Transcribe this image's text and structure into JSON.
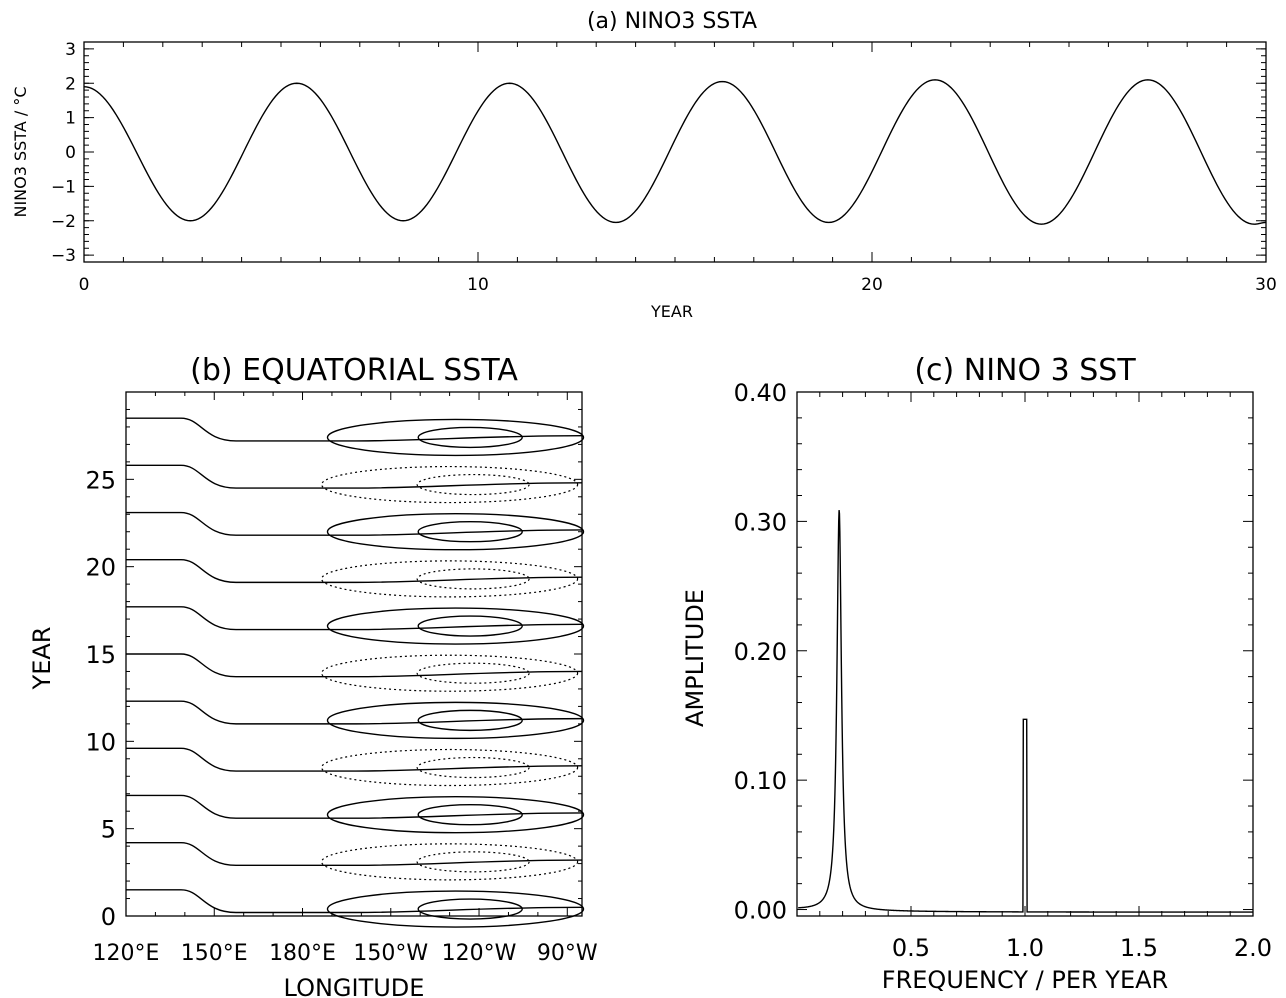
{
  "chart_data": [
    {
      "id": "a",
      "type": "line",
      "title": "(a) NINO3 SSTA",
      "xlabel": "YEAR",
      "ylabel": "NINO3 SSTA / °C",
      "xlim": [
        0,
        30
      ],
      "ylim": [
        -3.2,
        3.2
      ],
      "xticks": [
        0,
        10,
        20,
        30
      ],
      "yticks": [
        3,
        2,
        1,
        0,
        -1,
        -2,
        -3
      ],
      "x": [
        0,
        2.7,
        5.4,
        8.1,
        10.8,
        13.5,
        16.2,
        18.9,
        21.6,
        24.3,
        27.0,
        29.7,
        30
      ],
      "y": [
        1.9,
        -2.0,
        2.0,
        -2.0,
        2.0,
        -2.05,
        2.05,
        -2.05,
        2.1,
        -2.1,
        2.1,
        -2.1,
        -2.05
      ]
    },
    {
      "id": "b",
      "type": "contour",
      "title": "(b) EQUATORIAL SSTA",
      "xlabel": "LONGITUDE",
      "ylabel": "YEAR",
      "ylim": [
        0,
        30
      ],
      "yticks": [
        0,
        5,
        10,
        15,
        20,
        25
      ],
      "xtick_labels": [
        "120°E",
        "150°E",
        "180°E",
        "150°W",
        "120°W",
        "90°W"
      ],
      "xlim_deg_east": [
        120,
        275
      ],
      "period_years": 5.4,
      "note_lines": "solid = positive contours, dotted = negative contours"
    },
    {
      "id": "c",
      "type": "line",
      "title": "(c) NINO 3 SST",
      "xlabel": "FREQUENCY / PER YEAR",
      "ylabel": "AMPLITUDE",
      "xlim": [
        0,
        2.0
      ],
      "ylim": [
        -0.005,
        0.4
      ],
      "xticks": [
        "0.5",
        "1.0",
        "1.5",
        "2.0"
      ],
      "yticks": [
        "0.40",
        "0.30",
        "0.20",
        "0.10",
        "0.00"
      ],
      "series": [
        {
          "peaks": [
            {
              "x": 0.185,
              "y": 0.31
            },
            {
              "x": 1.0,
              "y": 0.147
            }
          ]
        }
      ]
    }
  ]
}
